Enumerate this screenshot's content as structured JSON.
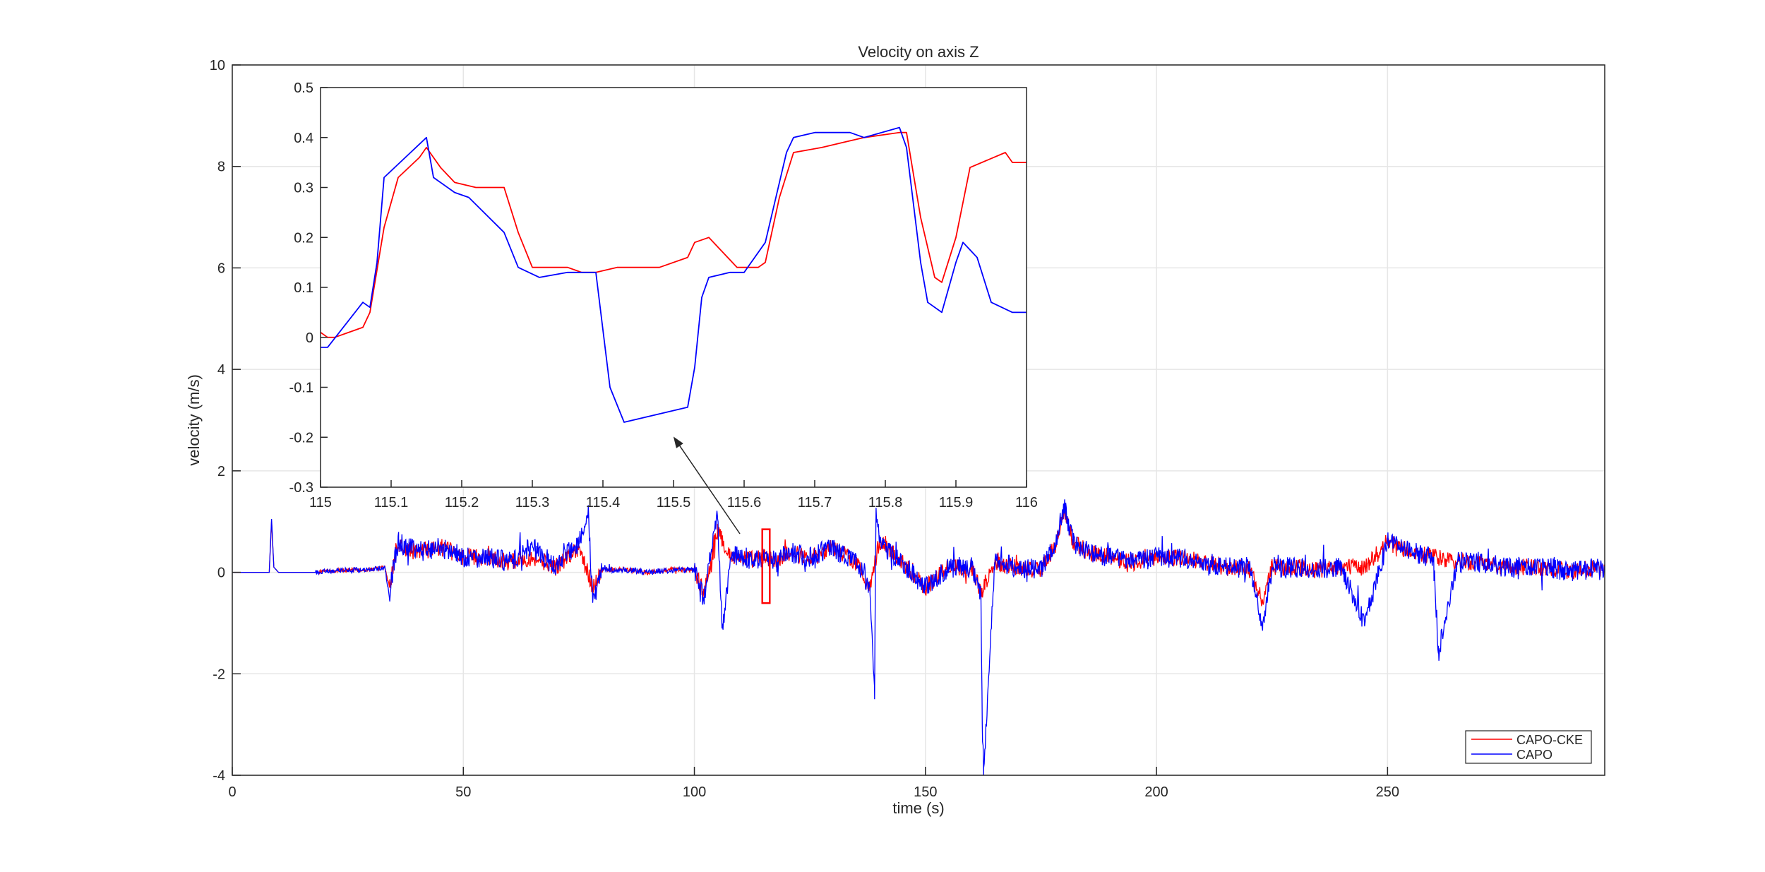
{
  "chart_data": [
    {
      "type": "line",
      "title": "Velocity on axis Z",
      "xlabel": "time (s)",
      "ylabel": "velocity (m/s)",
      "xlim": [
        0,
        297
      ],
      "ylim": [
        -4,
        10
      ],
      "xticks": [
        0,
        50,
        100,
        150,
        200,
        250
      ],
      "yticks": [
        -4,
        -2,
        0,
        2,
        4,
        6,
        8,
        10
      ],
      "grid": true,
      "legend": {
        "placement": "bottom-right",
        "entries": [
          "CAPO-CKE",
          "CAPO"
        ]
      },
      "highlight_box": {
        "x": [
          115,
          116
        ],
        "y": [
          -0.3,
          0.5
        ],
        "color": "#ff0000"
      },
      "series": [
        {
          "name": "CAPO-CKE",
          "color": "#ff0000",
          "x": [
            0,
            8,
            8.5,
            9,
            10,
            18,
            20,
            25,
            30,
            33,
            34,
            35,
            36,
            40,
            45,
            50,
            55,
            60,
            65,
            70,
            75,
            78,
            80,
            85,
            90,
            95,
            100,
            102,
            105,
            108,
            110,
            113,
            115,
            118,
            120,
            125,
            130,
            135,
            138,
            140,
            145,
            150,
            155,
            160,
            162,
            165,
            170,
            175,
            178,
            180,
            182,
            185,
            190,
            195,
            200,
            205,
            210,
            215,
            220,
            223,
            225,
            230,
            235,
            240,
            245,
            250,
            255,
            260,
            265,
            270,
            275,
            280,
            285,
            290,
            295,
            297
          ],
          "values": [
            0,
            0,
            1.0,
            0.1,
            0,
            0,
            0.02,
            0.05,
            0.05,
            0.1,
            -0.3,
            0.2,
            0.5,
            0.4,
            0.5,
            0.3,
            0.3,
            0.2,
            0.3,
            0.1,
            0.5,
            -0.3,
            0.05,
            0.05,
            0,
            0.05,
            0.05,
            -0.4,
            0.8,
            0.3,
            0.3,
            0.25,
            0.3,
            0.2,
            0.4,
            0.3,
            0.5,
            0.2,
            -0.3,
            0.6,
            0.2,
            -0.3,
            0.1,
            0.1,
            -0.4,
            0.2,
            0.1,
            0.05,
            0.5,
            1.2,
            0.6,
            0.4,
            0.3,
            0.2,
            0.3,
            0.3,
            0.2,
            0.1,
            0.1,
            -0.6,
            0.1,
            0.1,
            0.05,
            0.1,
            0.1,
            0.6,
            0.4,
            0.3,
            0.2,
            0.2,
            0.1,
            0.1,
            0.1,
            0,
            0.1,
            0
          ]
        },
        {
          "name": "CAPO",
          "color": "#0000ff",
          "x": [
            0,
            8,
            8.5,
            9,
            10,
            18,
            20,
            25,
            30,
            33,
            34,
            35,
            36,
            40,
            45,
            50,
            55,
            60,
            65,
            70,
            75,
            77,
            78,
            80,
            85,
            90,
            95,
            100,
            102,
            105,
            106,
            108,
            110,
            113,
            115,
            118,
            120,
            125,
            130,
            135,
            138,
            139,
            139.3,
            140,
            145,
            150,
            155,
            160,
            162,
            162.3,
            162.6,
            165,
            170,
            175,
            178,
            180,
            182,
            185,
            190,
            195,
            200,
            205,
            210,
            215,
            220,
            223,
            225,
            230,
            235,
            240,
            245,
            250,
            255,
            260,
            261,
            265,
            270,
            275,
            280,
            285,
            290,
            295,
            297
          ],
          "values": [
            0,
            0,
            1.05,
            0.1,
            0,
            0,
            0.02,
            0.05,
            0.05,
            0.1,
            -0.5,
            0.2,
            0.6,
            0.4,
            0.5,
            0.3,
            0.3,
            0.2,
            0.5,
            0.1,
            0.6,
            1.2,
            -0.6,
            0.05,
            0.05,
            0,
            0.05,
            0.05,
            -0.5,
            1.1,
            -1.1,
            0.3,
            0.3,
            0.25,
            0.3,
            0.2,
            0.4,
            0.3,
            0.5,
            0.2,
            -0.3,
            -2.5,
            1.2,
            0.6,
            0.2,
            -0.3,
            0.1,
            0.1,
            -0.5,
            -3.0,
            -4.0,
            0.2,
            0.1,
            0.05,
            0.5,
            1.3,
            0.6,
            0.4,
            0.3,
            0.2,
            0.3,
            0.3,
            0.2,
            0.1,
            0.1,
            -1.0,
            0.1,
            0.1,
            0.05,
            0.1,
            -1.0,
            0.6,
            0.4,
            0.3,
            -1.6,
            0.2,
            0.2,
            0.1,
            0.1,
            0.1,
            0,
            0.1,
            0
          ]
        }
      ]
    },
    {
      "type": "line",
      "title": "",
      "xlabel": "",
      "ylabel": "",
      "xlim": [
        115,
        116
      ],
      "ylim": [
        -0.3,
        0.5
      ],
      "xticks": [
        115,
        115.1,
        115.2,
        115.3,
        115.4,
        115.5,
        115.6,
        115.7,
        115.8,
        115.9,
        116
      ],
      "yticks": [
        -0.3,
        -0.2,
        -0.1,
        0,
        0.1,
        0.2,
        0.3,
        0.4,
        0.5
      ],
      "grid": false,
      "arrow": {
        "from": "inset",
        "to": "highlight_box"
      },
      "series": [
        {
          "name": "CAPO-CKE",
          "color": "#ff0000",
          "x": [
            115,
            115.01,
            115.02,
            115.06,
            115.07,
            115.09,
            115.11,
            115.14,
            115.15,
            115.17,
            115.19,
            115.22,
            115.26,
            115.28,
            115.3,
            115.35,
            115.37,
            115.39,
            115.42,
            115.45,
            115.48,
            115.52,
            115.53,
            115.55,
            115.57,
            115.59,
            115.62,
            115.63,
            115.65,
            115.67,
            115.71,
            115.74,
            115.77,
            115.82,
            115.83,
            115.85,
            115.87,
            115.88,
            115.9,
            115.92,
            115.97,
            115.98,
            116
          ],
          "values": [
            0.01,
            0.0,
            0.0,
            0.02,
            0.05,
            0.22,
            0.32,
            0.36,
            0.38,
            0.34,
            0.31,
            0.3,
            0.3,
            0.21,
            0.14,
            0.14,
            0.13,
            0.13,
            0.14,
            0.14,
            0.14,
            0.16,
            0.19,
            0.2,
            0.17,
            0.14,
            0.14,
            0.15,
            0.28,
            0.37,
            0.38,
            0.39,
            0.4,
            0.41,
            0.41,
            0.24,
            0.12,
            0.11,
            0.2,
            0.34,
            0.37,
            0.35,
            0.35
          ]
        },
        {
          "name": "CAPO",
          "color": "#0000ff",
          "x": [
            115,
            115.01,
            115.06,
            115.07,
            115.08,
            115.09,
            115.12,
            115.15,
            115.16,
            115.19,
            115.21,
            115.26,
            115.28,
            115.31,
            115.35,
            115.38,
            115.39,
            115.41,
            115.43,
            115.52,
            115.53,
            115.54,
            115.55,
            115.58,
            115.6,
            115.63,
            115.66,
            115.67,
            115.7,
            115.75,
            115.77,
            115.82,
            115.83,
            115.85,
            115.86,
            115.88,
            115.9,
            115.91,
            115.93,
            115.95,
            115.98,
            116
          ],
          "values": [
            -0.02,
            -0.02,
            0.07,
            0.06,
            0.15,
            0.32,
            0.36,
            0.4,
            0.32,
            0.29,
            0.28,
            0.21,
            0.14,
            0.12,
            0.13,
            0.13,
            0.13,
            -0.1,
            -0.17,
            -0.14,
            -0.06,
            0.08,
            0.12,
            0.13,
            0.13,
            0.19,
            0.37,
            0.4,
            0.41,
            0.41,
            0.4,
            0.42,
            0.38,
            0.15,
            0.07,
            0.05,
            0.15,
            0.19,
            0.16,
            0.07,
            0.05,
            0.05
          ]
        }
      ]
    }
  ]
}
